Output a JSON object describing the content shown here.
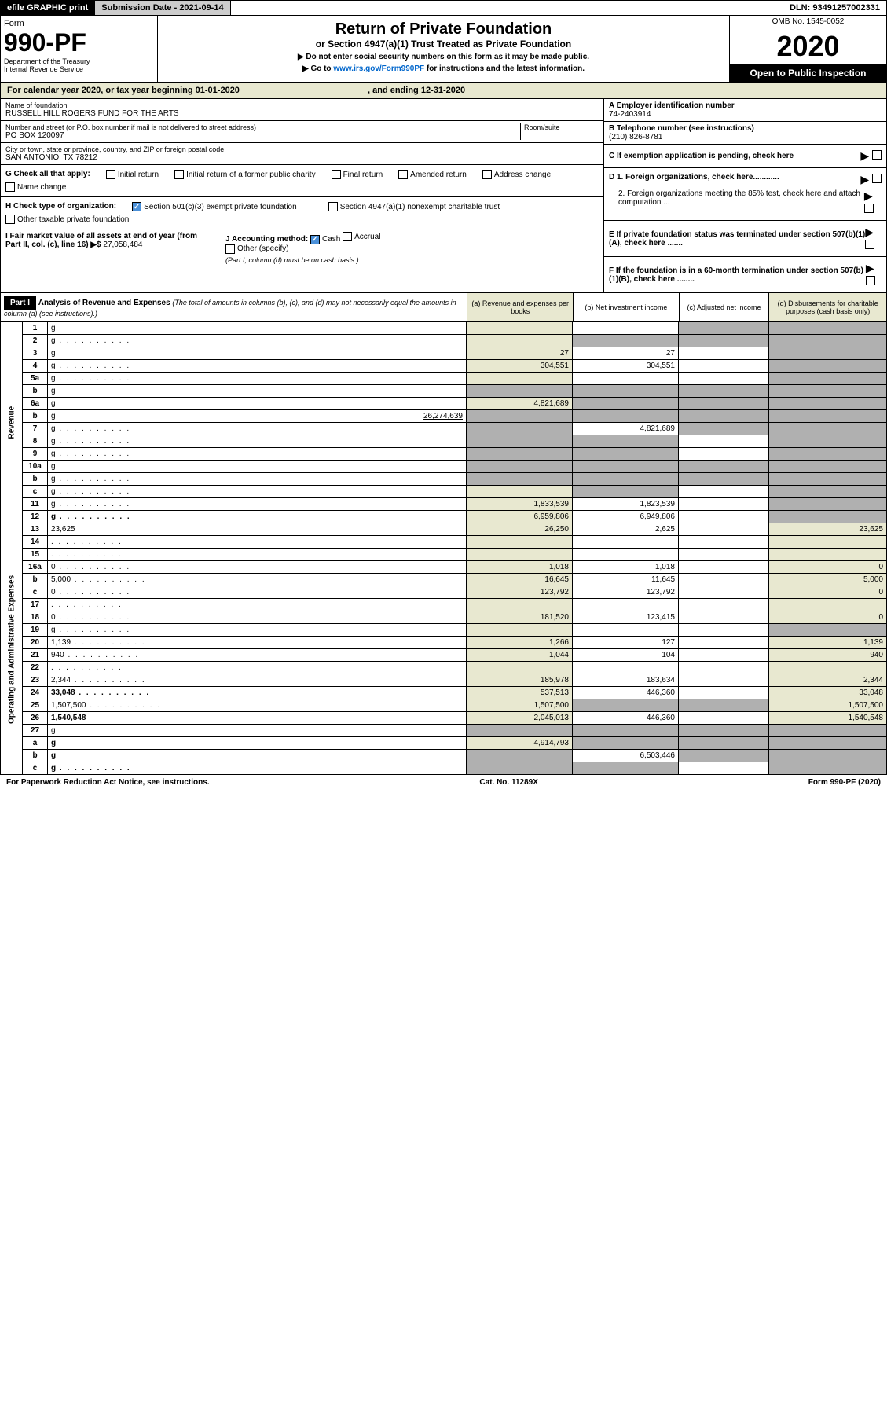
{
  "topbar": {
    "efile": "efile GRAPHIC print",
    "submission": "Submission Date - 2021-09-14",
    "dln": "DLN: 93491257002331"
  },
  "header": {
    "form_label": "Form",
    "form_number": "990-PF",
    "dept": "Department of the Treasury",
    "irs": "Internal Revenue Service",
    "title": "Return of Private Foundation",
    "subtitle": "or Section 4947(a)(1) Trust Treated as Private Foundation",
    "note1": "▶ Do not enter social security numbers on this form as it may be made public.",
    "note2_pre": "▶ Go to ",
    "note2_link": "www.irs.gov/Form990PF",
    "note2_post": " for instructions and the latest information.",
    "omb": "OMB No. 1545-0052",
    "year": "2020",
    "open": "Open to Public Inspection"
  },
  "calendar": {
    "text_pre": "For calendar year 2020, or tax year beginning ",
    "begin": "01-01-2020",
    "text_mid": " , and ending ",
    "end": "12-31-2020"
  },
  "foundation": {
    "name_label": "Name of foundation",
    "name": "RUSSELL HILL ROGERS FUND FOR THE ARTS",
    "addr_label": "Number and street (or P.O. box number if mail is not delivered to street address)",
    "addr": "PO BOX 120097",
    "room_label": "Room/suite",
    "city_label": "City or town, state or province, country, and ZIP or foreign postal code",
    "city": "SAN ANTONIO, TX  78212",
    "ein_label": "A Employer identification number",
    "ein": "74-2403914",
    "tel_label": "B Telephone number (see instructions)",
    "tel": "(210) 826-8781"
  },
  "checks": {
    "g_label": "G Check all that apply:",
    "g_items": [
      "Initial return",
      "Initial return of a former public charity",
      "Final return",
      "Amended return",
      "Address change",
      "Name change"
    ],
    "h_label": "H Check type of organization:",
    "h_501c3": "Section 501(c)(3) exempt private foundation",
    "h_4947": "Section 4947(a)(1) nonexempt charitable trust",
    "h_other": "Other taxable private foundation",
    "i_label": "I Fair market value of all assets at end of year (from Part II, col. (c), line 16) ▶$",
    "i_value": "27,058,484",
    "j_label": "J Accounting method:",
    "j_cash": "Cash",
    "j_accrual": "Accrual",
    "j_other": "Other (specify)",
    "j_note": "(Part I, column (d) must be on cash basis.)"
  },
  "right": {
    "c": "C If exemption application is pending, check here",
    "d1": "D 1. Foreign organizations, check here............",
    "d2": "2. Foreign organizations meeting the 85% test, check here and attach computation ...",
    "e": "E If private foundation status was terminated under section 507(b)(1)(A), check here .......",
    "f": "F If the foundation is in a 60-month termination under section 507(b)(1)(B), check here ........"
  },
  "part1": {
    "label": "Part I",
    "title": "Analysis of Revenue and Expenses",
    "note": "(The total of amounts in columns (b), (c), and (d) may not necessarily equal the amounts in column (a) (see instructions).)",
    "col_a": "(a)   Revenue and expenses per books",
    "col_b": "(b)  Net investment income",
    "col_c": "(c)  Adjusted net income",
    "col_d": "(d)  Disbursements for charitable purposes (cash basis only)"
  },
  "sections": {
    "revenue": "Revenue",
    "expenses": "Operating and Administrative Expenses"
  },
  "rows": [
    {
      "n": "1",
      "d": "g",
      "a": "",
      "b": "",
      "c": "g"
    },
    {
      "n": "2",
      "d": "g",
      "dots": true,
      "a": "",
      "b": "g",
      "c": "g"
    },
    {
      "n": "3",
      "d": "g",
      "a": "27",
      "b": "27",
      "c": ""
    },
    {
      "n": "4",
      "d": "g",
      "dots": true,
      "a": "304,551",
      "b": "304,551",
      "c": ""
    },
    {
      "n": "5a",
      "d": "g",
      "dots": true,
      "a": "",
      "b": "",
      "c": ""
    },
    {
      "n": "b",
      "d": "g",
      "a": "g",
      "b": "g",
      "c": "g"
    },
    {
      "n": "6a",
      "d": "g",
      "a": "4,821,689",
      "b": "g",
      "c": "g"
    },
    {
      "n": "b",
      "d": "g",
      "inline": "26,274,639",
      "a": "g",
      "b": "g",
      "c": "g"
    },
    {
      "n": "7",
      "d": "g",
      "dots": true,
      "a": "g",
      "b": "4,821,689",
      "c": "g"
    },
    {
      "n": "8",
      "d": "g",
      "dots": true,
      "a": "g",
      "b": "g",
      "c": ""
    },
    {
      "n": "9",
      "d": "g",
      "dots": true,
      "a": "g",
      "b": "g",
      "c": ""
    },
    {
      "n": "10a",
      "d": "g",
      "a": "g",
      "b": "g",
      "c": "g"
    },
    {
      "n": "b",
      "d": "g",
      "dots": true,
      "a": "g",
      "b": "g",
      "c": "g"
    },
    {
      "n": "c",
      "d": "g",
      "dots": true,
      "a": "",
      "b": "g",
      "c": ""
    },
    {
      "n": "11",
      "d": "g",
      "dots": true,
      "a": "1,833,539",
      "b": "1,823,539",
      "c": ""
    },
    {
      "n": "12",
      "d": "g",
      "dots": true,
      "bold": true,
      "a": "6,959,806",
      "b": "6,949,806",
      "c": ""
    },
    {
      "n": "13",
      "d": "23,625",
      "a": "26,250",
      "b": "2,625",
      "c": ""
    },
    {
      "n": "14",
      "d": "",
      "dots": true,
      "a": "",
      "b": "",
      "c": ""
    },
    {
      "n": "15",
      "d": "",
      "dots": true,
      "a": "",
      "b": "",
      "c": ""
    },
    {
      "n": "16a",
      "d": "0",
      "dots": true,
      "a": "1,018",
      "b": "1,018",
      "c": ""
    },
    {
      "n": "b",
      "d": "5,000",
      "dots": true,
      "a": "16,645",
      "b": "11,645",
      "c": ""
    },
    {
      "n": "c",
      "d": "0",
      "dots": true,
      "a": "123,792",
      "b": "123,792",
      "c": ""
    },
    {
      "n": "17",
      "d": "",
      "dots": true,
      "a": "",
      "b": "",
      "c": ""
    },
    {
      "n": "18",
      "d": "0",
      "dots": true,
      "a": "181,520",
      "b": "123,415",
      "c": ""
    },
    {
      "n": "19",
      "d": "g",
      "dots": true,
      "a": "",
      "b": "",
      "c": ""
    },
    {
      "n": "20",
      "d": "1,139",
      "dots": true,
      "a": "1,266",
      "b": "127",
      "c": ""
    },
    {
      "n": "21",
      "d": "940",
      "dots": true,
      "a": "1,044",
      "b": "104",
      "c": ""
    },
    {
      "n": "22",
      "d": "",
      "dots": true,
      "a": "",
      "b": "",
      "c": ""
    },
    {
      "n": "23",
      "d": "2,344",
      "dots": true,
      "a": "185,978",
      "b": "183,634",
      "c": ""
    },
    {
      "n": "24",
      "d": "33,048",
      "dots": true,
      "bold": true,
      "a": "537,513",
      "b": "446,360",
      "c": ""
    },
    {
      "n": "25",
      "d": "1,507,500",
      "dots": true,
      "a": "1,507,500",
      "b": "g",
      "c": "g"
    },
    {
      "n": "26",
      "d": "1,540,548",
      "bold": true,
      "a": "2,045,013",
      "b": "446,360",
      "c": ""
    },
    {
      "n": "27",
      "d": "g",
      "a": "g",
      "b": "g",
      "c": "g"
    },
    {
      "n": "a",
      "d": "g",
      "bold": true,
      "a": "4,914,793",
      "b": "g",
      "c": "g"
    },
    {
      "n": "b",
      "d": "g",
      "bold": true,
      "a": "g",
      "b": "6,503,446",
      "c": "g"
    },
    {
      "n": "c",
      "d": "g",
      "dots": true,
      "bold": true,
      "a": "g",
      "b": "g",
      "c": ""
    }
  ],
  "footer": {
    "left": "For Paperwork Reduction Act Notice, see instructions.",
    "mid": "Cat. No. 11289X",
    "right": "Form 990-PF (2020)"
  }
}
